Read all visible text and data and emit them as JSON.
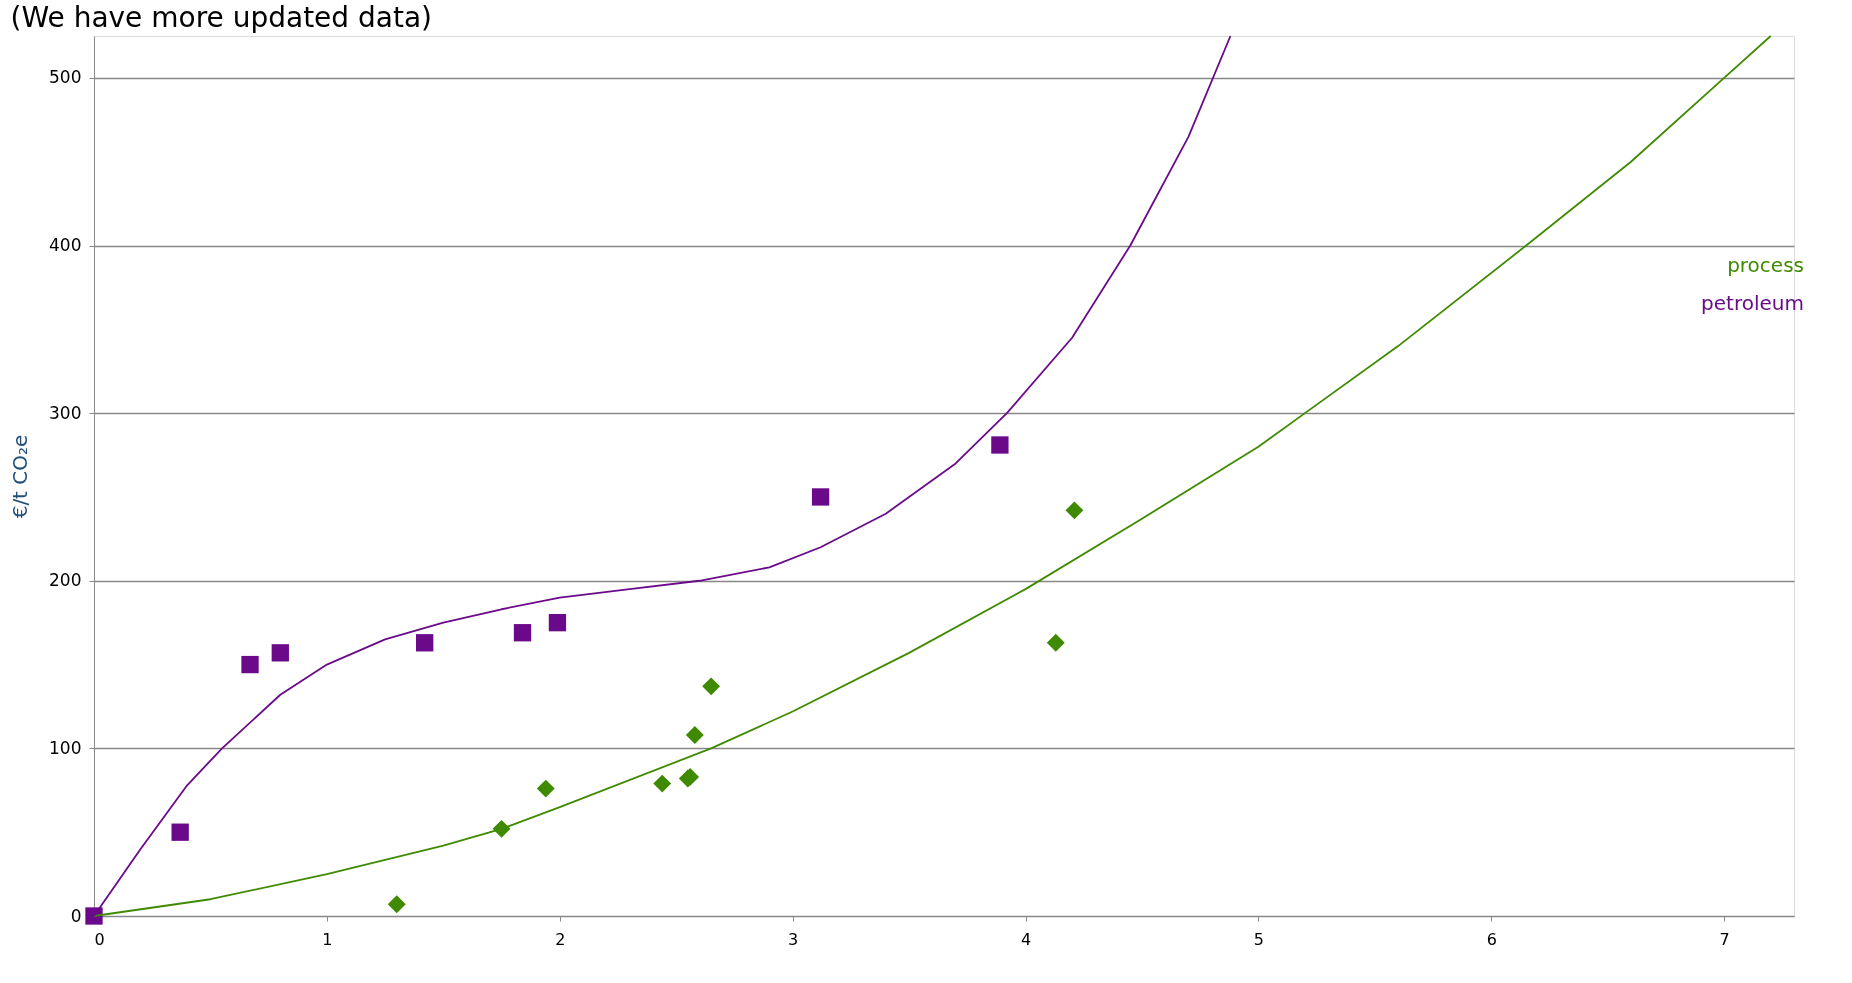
{
  "chart_data": {
    "type": "scatter",
    "title": "(We have more updated data)",
    "ylabel": "€/t CO₂e",
    "xlim": [
      0,
      7.3
    ],
    "xticks": [
      0,
      1,
      2,
      3,
      4,
      5,
      6,
      7
    ],
    "ylim": [
      0,
      525
    ],
    "yticks": [
      0,
      100,
      200,
      300,
      400,
      500
    ],
    "grid": "y",
    "legend": "right",
    "series": [
      {
        "name": "process",
        "marker": "diamond",
        "color": "#3f8a00",
        "x": [
          1.3,
          1.75,
          1.94,
          2.44,
          2.55,
          2.56,
          2.58,
          2.65,
          4.13,
          4.21
        ],
        "values": [
          7,
          52,
          76,
          79,
          82,
          83,
          108,
          137,
          163,
          242
        ]
      },
      {
        "name": "petroleum",
        "marker": "square",
        "color": "#6a0a8a",
        "x": [
          0,
          0.37,
          0.67,
          0.8,
          1.42,
          1.84,
          1.99,
          3.12,
          3.89
        ],
        "values": [
          0,
          50,
          150,
          157,
          163,
          169,
          175,
          250,
          281
        ]
      },
      {
        "type": "line",
        "marker": "none",
        "line_style": "solid",
        "color": "#3f8a00",
        "x": [
          0,
          0.5,
          1,
          1.5,
          1.75,
          2,
          2.65,
          3,
          3.5,
          4,
          4.5,
          5,
          5.2,
          5.6,
          6.15,
          6.6,
          7,
          7.2
        ],
        "values": [
          0,
          10,
          25,
          42,
          52,
          65,
          100,
          122,
          157,
          195,
          237,
          280,
          300,
          340,
          400,
          450,
          500,
          525
        ]
      },
      {
        "type": "line",
        "marker": "none",
        "line_style": "solid",
        "color": "#6a0a8a",
        "x": [
          0,
          0.2,
          0.4,
          0.55,
          0.8,
          1,
          1.25,
          1.5,
          1.75,
          2,
          2.3,
          2.6,
          2.9,
          3.12,
          3.4,
          3.7,
          3.92,
          4.2,
          4.45,
          4.7,
          4.88
        ],
        "values": [
          0,
          40,
          78,
          100,
          132,
          150,
          165,
          175,
          183,
          190,
          195,
          200,
          208,
          220,
          240,
          270,
          300,
          345,
          400,
          465,
          525
        ]
      }
    ]
  }
}
